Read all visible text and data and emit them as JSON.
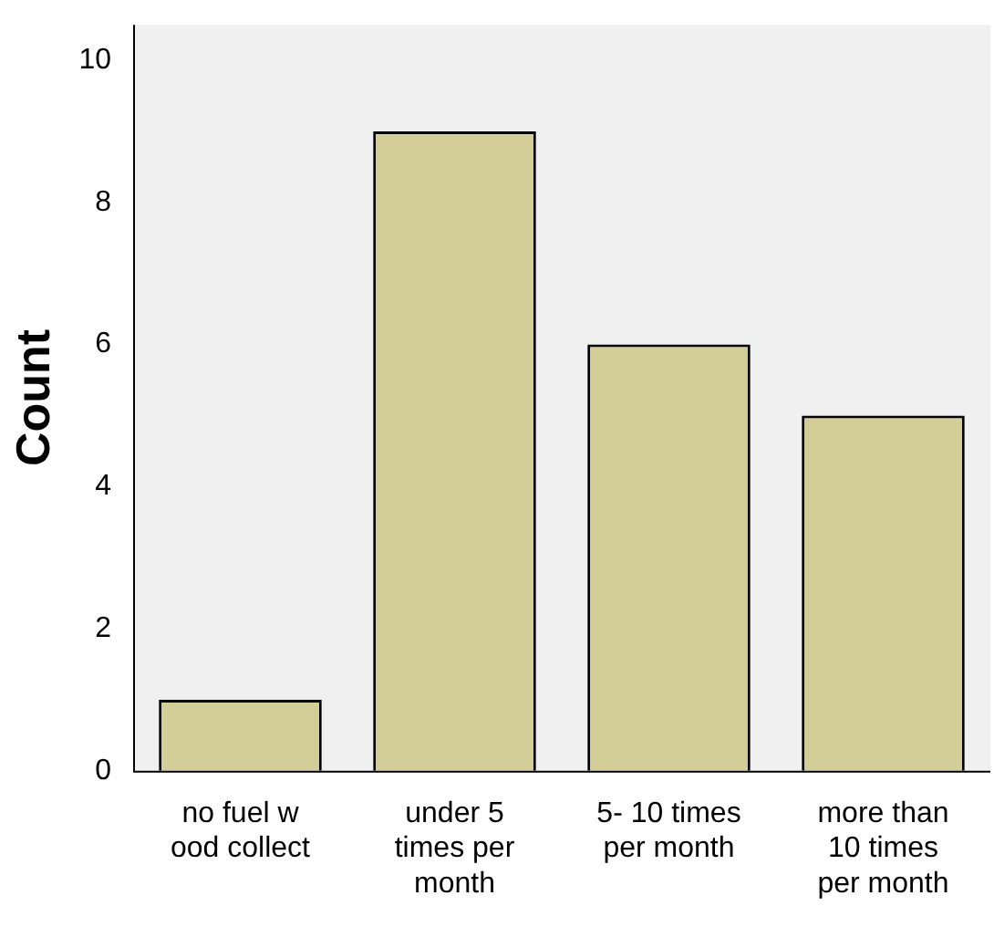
{
  "chart_data": {
    "type": "bar",
    "ylabel": "Count",
    "categories": [
      "no fuel w ood collect",
      "under 5 times per month",
      "5- 10 times per month",
      "more than 10 times per month"
    ],
    "values": [
      1,
      9,
      6,
      5
    ],
    "color": "#d3ce97",
    "ylim": [
      0,
      10.5
    ],
    "yticks": [
      0,
      2,
      4,
      6,
      8,
      10
    ],
    "grid": false,
    "legend": false
  }
}
